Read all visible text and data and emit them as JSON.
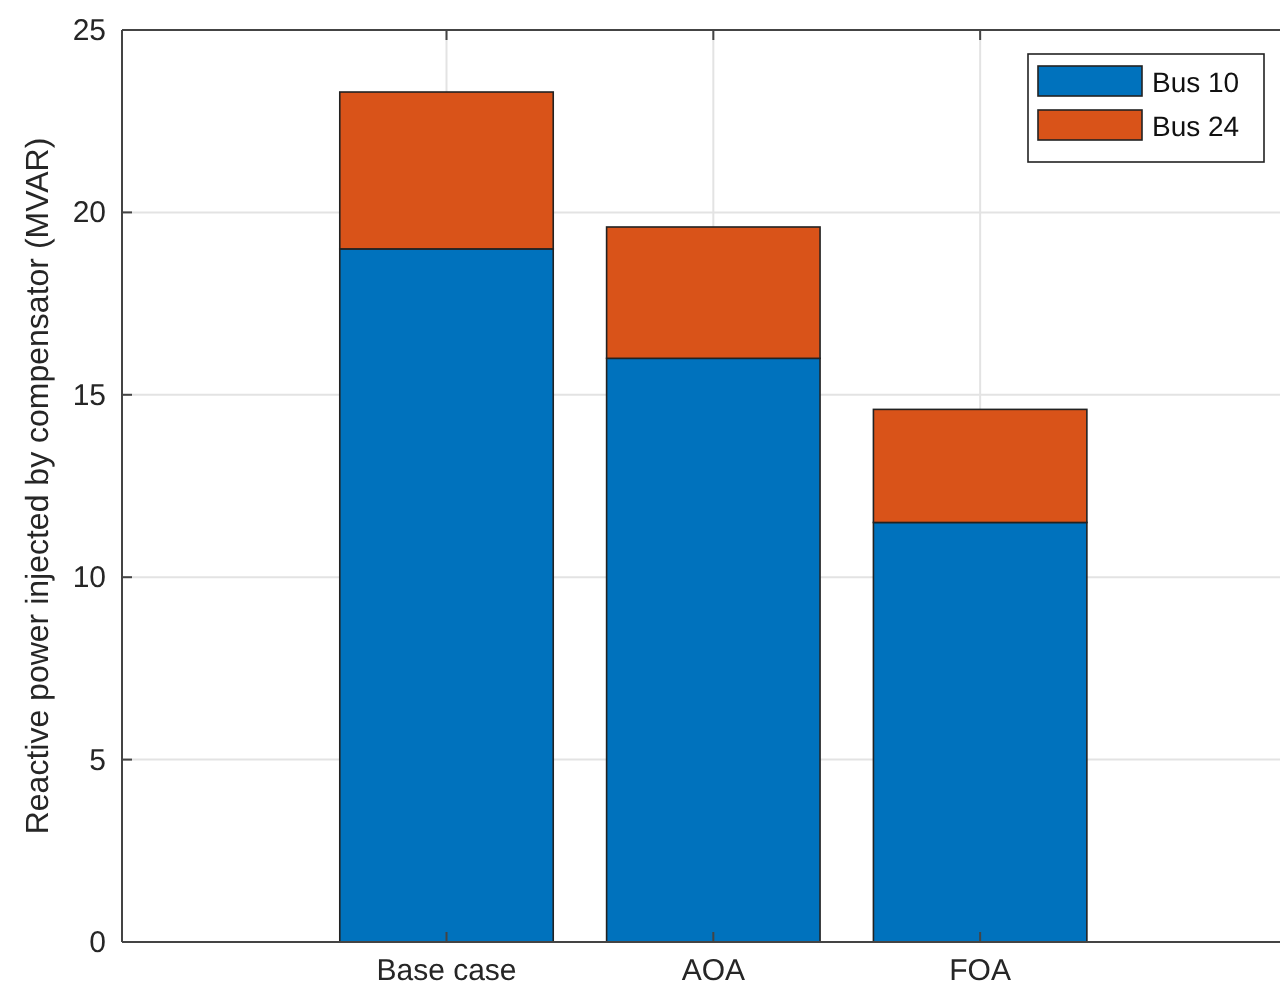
{
  "chart_data": {
    "type": "bar",
    "stacked": true,
    "ylabel": "Reactive power injected by compensator (MVAR)",
    "categories": [
      "Base case",
      "AOA",
      "FOA"
    ],
    "series": [
      {
        "name": "Bus 10",
        "color": "#0072bd",
        "values": [
          19,
          16,
          11.5
        ]
      },
      {
        "name": "Bus 24",
        "color": "#d95319",
        "values": [
          4.3,
          3.6,
          3.1
        ]
      }
    ],
    "ylim": [
      0,
      25
    ],
    "yticks": [
      0,
      5,
      10,
      15,
      20,
      25
    ],
    "grid": true,
    "legend": "top right"
  }
}
